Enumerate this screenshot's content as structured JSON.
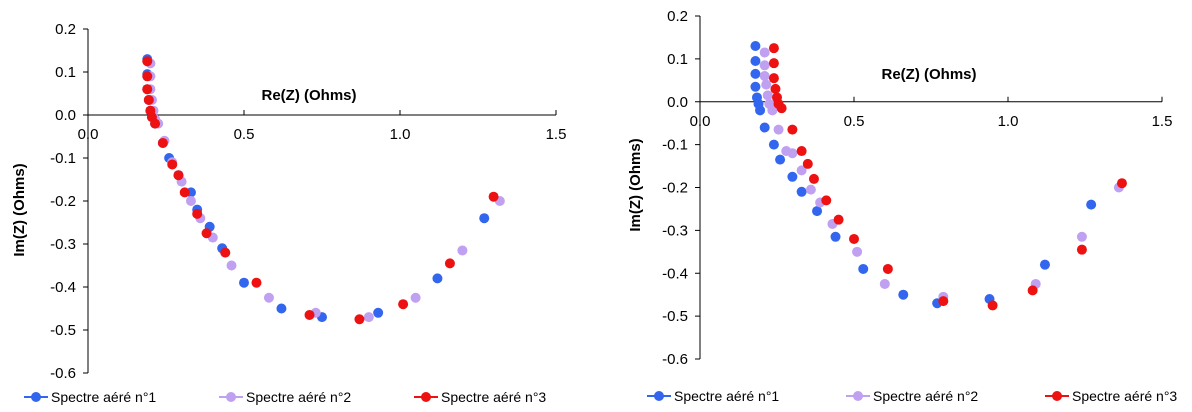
{
  "chart_data": [
    {
      "type": "scatter",
      "xlabel": "Re(Z) (Ohms)",
      "ylabel": "Im(Z) (Ohms)",
      "xlim": [
        0.0,
        1.5
      ],
      "ylim": [
        -0.6,
        0.2
      ],
      "xticks": [
        "0.0",
        "0.5",
        "1.0",
        "1.5"
      ],
      "yticks": [
        "0.2",
        "0.1",
        "0.0",
        "-0.1",
        "-0.2",
        "-0.3",
        "-0.4",
        "-0.5",
        "-0.6"
      ],
      "grid": false,
      "legend_position": "bottom",
      "series": [
        {
          "name": "Spectre aéré n°1",
          "color": "#3366ee",
          "points": [
            [
              0.19,
              0.13
            ],
            [
              0.19,
              0.095
            ],
            [
              0.19,
              0.06
            ],
            [
              0.195,
              0.035
            ],
            [
              0.2,
              0.01
            ],
            [
              0.205,
              -0.005
            ],
            [
              0.215,
              -0.02
            ],
            [
              0.24,
              -0.065
            ],
            [
              0.26,
              -0.1
            ],
            [
              0.29,
              -0.14
            ],
            [
              0.33,
              -0.18
            ],
            [
              0.35,
              -0.22
            ],
            [
              0.39,
              -0.26
            ],
            [
              0.43,
              -0.31
            ],
            [
              0.5,
              -0.39
            ],
            [
              0.62,
              -0.45
            ],
            [
              0.75,
              -0.47
            ],
            [
              0.93,
              -0.46
            ],
            [
              1.12,
              -0.38
            ],
            [
              1.27,
              -0.24
            ]
          ]
        },
        {
          "name": "Spectre aéré n°2",
          "color": "#c0a0f0",
          "points": [
            [
              0.2,
              0.12
            ],
            [
              0.2,
              0.09
            ],
            [
              0.2,
              0.06
            ],
            [
              0.205,
              0.035
            ],
            [
              0.21,
              0.01
            ],
            [
              0.215,
              -0.01
            ],
            [
              0.225,
              -0.02
            ],
            [
              0.245,
              -0.06
            ],
            [
              0.27,
              -0.11
            ],
            [
              0.3,
              -0.155
            ],
            [
              0.33,
              -0.2
            ],
            [
              0.36,
              -0.24
            ],
            [
              0.4,
              -0.285
            ],
            [
              0.46,
              -0.35
            ],
            [
              0.58,
              -0.425
            ],
            [
              0.73,
              -0.46
            ],
            [
              0.9,
              -0.47
            ],
            [
              1.05,
              -0.425
            ],
            [
              1.2,
              -0.315
            ],
            [
              1.32,
              -0.2
            ]
          ]
        },
        {
          "name": "Spectre aéré n°3",
          "color": "#ee1111",
          "points": [
            [
              0.19,
              0.125
            ],
            [
              0.19,
              0.09
            ],
            [
              0.19,
              0.06
            ],
            [
              0.195,
              0.035
            ],
            [
              0.2,
              0.01
            ],
            [
              0.205,
              -0.005
            ],
            [
              0.215,
              -0.02
            ],
            [
              0.24,
              -0.065
            ],
            [
              0.27,
              -0.115
            ],
            [
              0.29,
              -0.14
            ],
            [
              0.31,
              -0.18
            ],
            [
              0.35,
              -0.23
            ],
            [
              0.38,
              -0.275
            ],
            [
              0.44,
              -0.32
            ],
            [
              0.54,
              -0.39
            ],
            [
              0.71,
              -0.465
            ],
            [
              0.87,
              -0.475
            ],
            [
              1.01,
              -0.44
            ],
            [
              1.16,
              -0.345
            ],
            [
              1.3,
              -0.19
            ]
          ]
        }
      ]
    },
    {
      "type": "scatter",
      "xlabel": "Re(Z) (Ohms)",
      "ylabel": "Im(Z) (Ohms)",
      "xlim": [
        0.0,
        1.5
      ],
      "ylim": [
        -0.6,
        0.2
      ],
      "xticks": [
        "0.0",
        "0.5",
        "1.0",
        "1.5"
      ],
      "yticks": [
        "0.2",
        "0.1",
        "0.0",
        "-0.1",
        "-0.2",
        "-0.3",
        "-0.4",
        "-0.5",
        "-0.6"
      ],
      "grid": false,
      "legend_position": "bottom",
      "series": [
        {
          "name": "Spectre aéré n°1",
          "color": "#3366ee",
          "points": [
            [
              0.18,
              0.13
            ],
            [
              0.18,
              0.095
            ],
            [
              0.18,
              0.065
            ],
            [
              0.18,
              0.035
            ],
            [
              0.185,
              0.01
            ],
            [
              0.19,
              -0.005
            ],
            [
              0.195,
              -0.02
            ],
            [
              0.21,
              -0.06
            ],
            [
              0.24,
              -0.1
            ],
            [
              0.26,
              -0.135
            ],
            [
              0.3,
              -0.175
            ],
            [
              0.33,
              -0.21
            ],
            [
              0.38,
              -0.255
            ],
            [
              0.44,
              -0.315
            ],
            [
              0.53,
              -0.39
            ],
            [
              0.66,
              -0.45
            ],
            [
              0.77,
              -0.47
            ],
            [
              0.94,
              -0.46
            ],
            [
              1.12,
              -0.38
            ],
            [
              1.27,
              -0.24
            ]
          ]
        },
        {
          "name": "Spectre aéré n°2",
          "color": "#c0a0f0",
          "points": [
            [
              0.21,
              0.115
            ],
            [
              0.21,
              0.085
            ],
            [
              0.21,
              0.06
            ],
            [
              0.215,
              0.04
            ],
            [
              0.22,
              0.015
            ],
            [
              0.225,
              -0.005
            ],
            [
              0.235,
              -0.02
            ],
            [
              0.255,
              -0.065
            ],
            [
              0.28,
              -0.115
            ],
            [
              0.3,
              -0.12
            ],
            [
              0.33,
              -0.16
            ],
            [
              0.36,
              -0.205
            ],
            [
              0.39,
              -0.235
            ],
            [
              0.43,
              -0.285
            ],
            [
              0.51,
              -0.35
            ],
            [
              0.6,
              -0.425
            ],
            [
              0.79,
              -0.455
            ],
            [
              1.09,
              -0.425
            ],
            [
              1.24,
              -0.315
            ],
            [
              1.36,
              -0.2
            ]
          ]
        },
        {
          "name": "Spectre aéré n°3",
          "color": "#ee1111",
          "points": [
            [
              0.24,
              0.125
            ],
            [
              0.24,
              0.09
            ],
            [
              0.24,
              0.055
            ],
            [
              0.245,
              0.03
            ],
            [
              0.25,
              0.01
            ],
            [
              0.255,
              -0.005
            ],
            [
              0.265,
              -0.015
            ],
            [
              0.3,
              -0.065
            ],
            [
              0.33,
              -0.115
            ],
            [
              0.35,
              -0.145
            ],
            [
              0.37,
              -0.18
            ],
            [
              0.41,
              -0.23
            ],
            [
              0.45,
              -0.275
            ],
            [
              0.5,
              -0.32
            ],
            [
              0.61,
              -0.39
            ],
            [
              0.79,
              -0.465
            ],
            [
              0.95,
              -0.475
            ],
            [
              1.08,
              -0.44
            ],
            [
              1.24,
              -0.345
            ],
            [
              1.37,
              -0.19
            ]
          ]
        }
      ]
    }
  ]
}
